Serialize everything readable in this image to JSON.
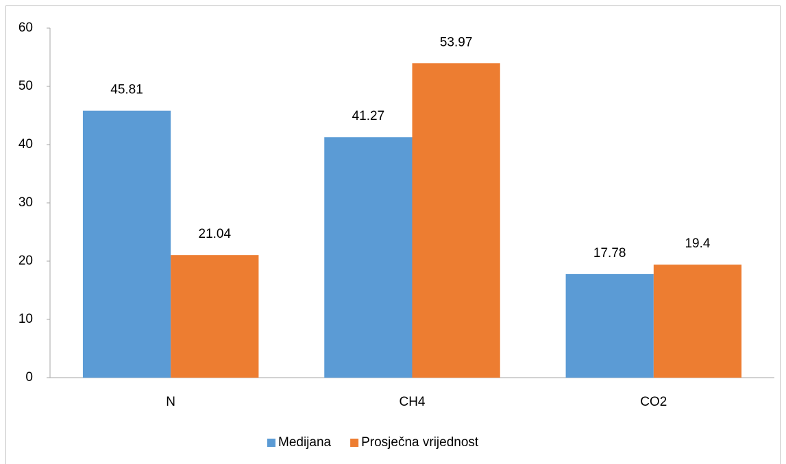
{
  "chart_data": {
    "type": "bar",
    "categories": [
      "N",
      "CH4",
      "CO2"
    ],
    "series": [
      {
        "name": "Medijana",
        "color": "#5b9bd5",
        "values": [
          45.81,
          41.27,
          17.78
        ]
      },
      {
        "name": "Prosječna vrijednost",
        "color": "#ed7d31",
        "values": [
          21.04,
          53.97,
          19.4
        ]
      }
    ],
    "ylim": [
      0,
      60
    ],
    "yticks": [
      0,
      10,
      20,
      30,
      40,
      50,
      60
    ],
    "grid": false,
    "legend": "bottom"
  }
}
